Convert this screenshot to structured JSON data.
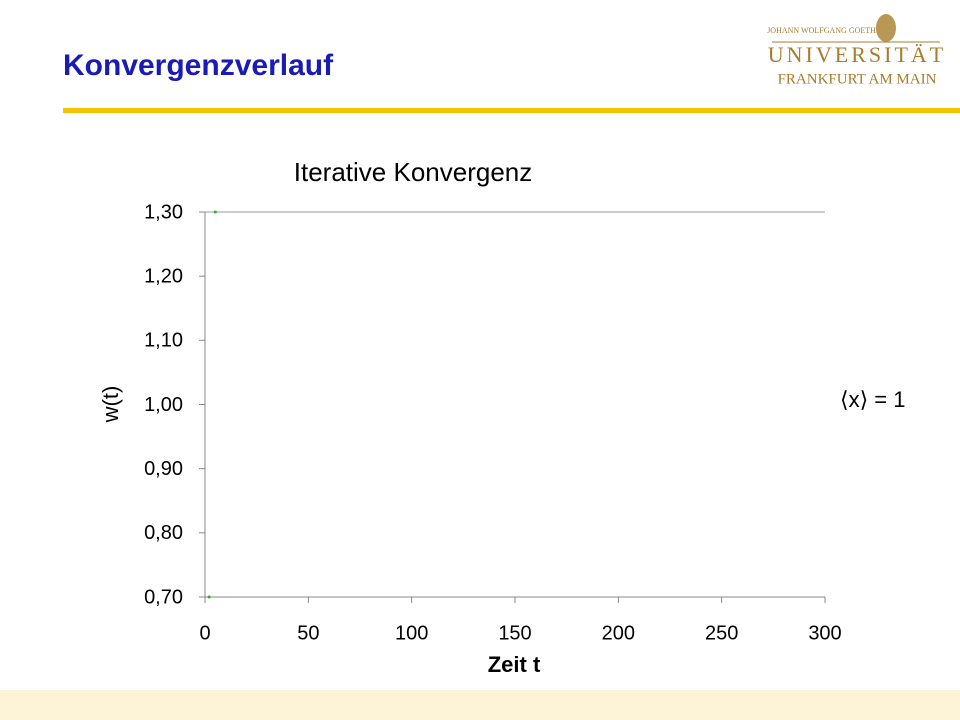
{
  "slide": {
    "title": "Konvergenzverlauf",
    "logo": {
      "line1": "JOHANN WOLFGANG GOETHE",
      "line2": "UNIVERSITÄT",
      "line3": "FRANKFURT AM MAIN"
    }
  },
  "chart_data": {
    "type": "scatter",
    "title": "Iterative Konvergenz",
    "x_label": "Zeit t",
    "y_label": "w(t)",
    "annotation": "⟨x⟩ = 1",
    "x": [
      2,
      5
    ],
    "values": [
      0.7,
      1.3
    ],
    "color": "#33aa33",
    "xlim": [
      0,
      300
    ],
    "xticks": [
      0,
      50,
      100,
      150,
      200,
      250,
      300
    ],
    "ylim": [
      0.7,
      1.3
    ],
    "yticks": [
      {
        "value": 0.7,
        "label": "0,70"
      },
      {
        "value": 0.8,
        "label": "0,80"
      },
      {
        "value": 0.9,
        "label": "0,90"
      },
      {
        "value": 1.0,
        "label": "1,00"
      },
      {
        "value": 1.1,
        "label": "1,10"
      },
      {
        "value": 1.2,
        "label": "1,20"
      },
      {
        "value": 1.3,
        "label": "1,30"
      }
    ],
    "grid": false
  }
}
